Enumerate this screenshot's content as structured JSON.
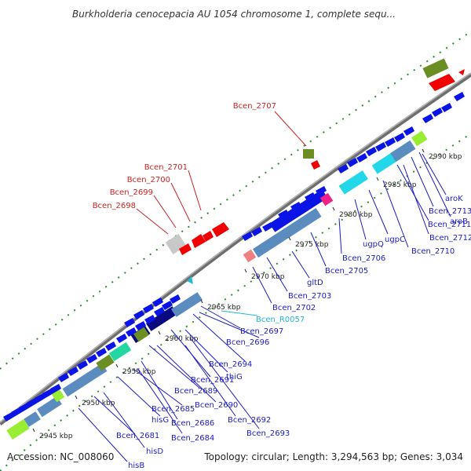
{
  "title": "Burkholderia cenocepacia AU 1054 chromosome 1, complete sequ...",
  "footer": {
    "accession": "Accession: NC_008060",
    "topology": "Topology: circular; Length: 3,294,563 bp; Genes: 3,034"
  },
  "colors": {
    "backbone": "#888888",
    "tick": "#2e8b2e",
    "label_blue": "#1c1cc8",
    "label_red": "#cc2222",
    "label_cyan": "#22b8d8",
    "gene_blue": "#0a14e6",
    "gene_red": "#f00000",
    "gene_olive": "#6b8e23",
    "gene_steel": "#5b8cc0",
    "gene_cyan": "#22d8e8",
    "gene_lime": "#99ee33",
    "gene_navy": "#0a0a80",
    "gene_magenta": "#ee2288",
    "gene_gray": "#c8c8c8"
  },
  "ruler": [
    {
      "label": "2945 kbp"
    },
    {
      "label": "2950 kbp"
    },
    {
      "label": "2955 kbp"
    },
    {
      "label": "2960 kbp"
    },
    {
      "label": "2965 kbp"
    },
    {
      "label": "2970 kbp"
    },
    {
      "label": "2975 kbp"
    },
    {
      "label": "2980 kbp"
    },
    {
      "label": "2985 kbp"
    },
    {
      "label": "2990 kbp"
    }
  ],
  "gene_labels": [
    {
      "text": "hisB",
      "color": "blue"
    },
    {
      "text": "hisD",
      "color": "blue"
    },
    {
      "text": "Bcen_2681",
      "color": "blue"
    },
    {
      "text": "hisG",
      "color": "blue"
    },
    {
      "text": "Bcen_2684",
      "color": "blue"
    },
    {
      "text": "Bcen_2685",
      "color": "blue"
    },
    {
      "text": "Bcen_2686",
      "color": "blue"
    },
    {
      "text": "Bcen_2689",
      "color": "blue"
    },
    {
      "text": "Bcen_2690",
      "color": "blue"
    },
    {
      "text": "Bcen_2691",
      "color": "blue"
    },
    {
      "text": "Bcen_2692",
      "color": "blue"
    },
    {
      "text": "Bcen_2693",
      "color": "blue"
    },
    {
      "text": "thiG",
      "color": "blue"
    },
    {
      "text": "Bcen_2694",
      "color": "blue"
    },
    {
      "text": "Bcen_2696",
      "color": "blue"
    },
    {
      "text": "Bcen_2697",
      "color": "blue"
    },
    {
      "text": "Bcen_R0057",
      "color": "cyan"
    },
    {
      "text": "Bcen_2702",
      "color": "blue"
    },
    {
      "text": "Bcen_2703",
      "color": "blue"
    },
    {
      "text": "gltD",
      "color": "blue"
    },
    {
      "text": "Bcen_2705",
      "color": "blue"
    },
    {
      "text": "Bcen_2706",
      "color": "blue"
    },
    {
      "text": "ugpQ",
      "color": "blue"
    },
    {
      "text": "ugpC",
      "color": "blue"
    },
    {
      "text": "Bcen_2710",
      "color": "blue"
    },
    {
      "text": "Bcen_2711",
      "color": "blue"
    },
    {
      "text": "Bcen_2712",
      "color": "blue"
    },
    {
      "text": "Bcen_2713",
      "color": "blue"
    },
    {
      "text": "aroB",
      "color": "blue"
    },
    {
      "text": "aroK",
      "color": "blue"
    },
    {
      "text": "Bcen_2698",
      "color": "red"
    },
    {
      "text": "Bcen_2699",
      "color": "red"
    },
    {
      "text": "Bcen_2700",
      "color": "red"
    },
    {
      "text": "Bcen_2701",
      "color": "red"
    },
    {
      "text": "Bcen_2707",
      "color": "red"
    }
  ]
}
